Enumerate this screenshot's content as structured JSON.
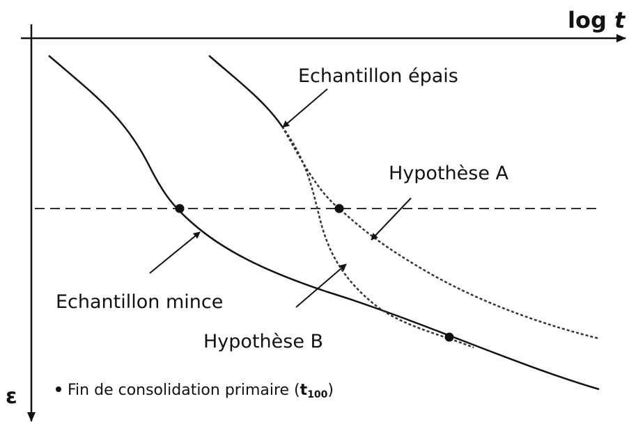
{
  "axes": {
    "x_label": {
      "main": "log",
      "variable": "t"
    },
    "y_label": "ε"
  },
  "curves": {
    "thick_sample": "Echantillon épais",
    "thin_sample": "Echantillon mince",
    "hypothesis_a": "Hypothèse A",
    "hypothesis_b": "Hypothèse B"
  },
  "legend": {
    "prefix": "Fin de consolidation primaire (",
    "symbol": "t",
    "subscript": "100",
    "suffix": ")"
  }
}
